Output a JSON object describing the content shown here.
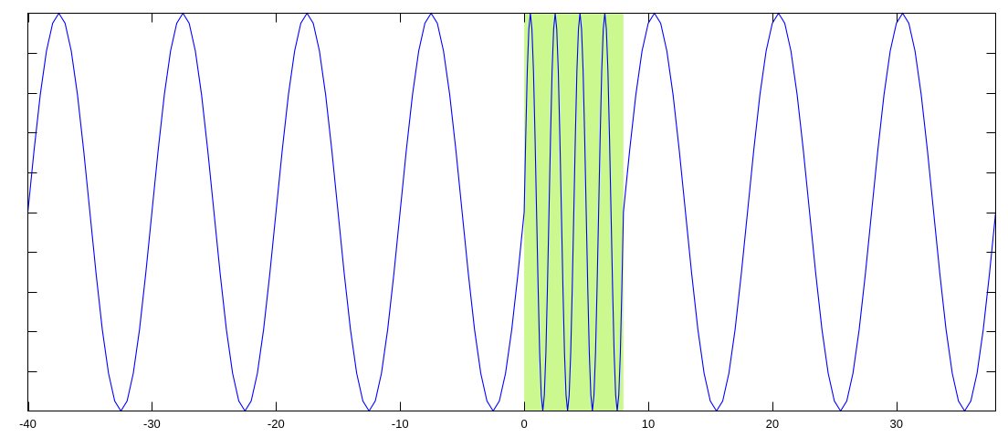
{
  "chart_data": {
    "type": "line",
    "title": "",
    "xlabel": "",
    "ylabel": "",
    "xlim": [
      -40,
      38
    ],
    "ylim": [
      -1,
      1
    ],
    "grid": false,
    "x_ticks": [
      -40,
      -30,
      -20,
      -10,
      0,
      10,
      20,
      30
    ],
    "x_tick_labels": [
      "-40",
      "-30",
      "-20",
      "-10",
      "0",
      "10",
      "20",
      "30"
    ],
    "y_tick_count": 11,
    "y_tick_labels_shown": false,
    "highlight_band": {
      "x_from": 0,
      "x_to": 8,
      "color": "#ccf98f"
    },
    "series_color": "#0000ff",
    "segments": [
      {
        "x_start": -40,
        "x_step": 0.5,
        "y": [
          0,
          0.31,
          0.59,
          0.81,
          0.95,
          1,
          0.95,
          0.81,
          0.59,
          0.31,
          0,
          -0.31,
          -0.59,
          -0.81,
          -0.95,
          -1,
          -0.95,
          -0.81,
          -0.59,
          -0.31,
          0,
          0.31,
          0.59,
          0.81,
          0.95,
          1,
          0.95,
          0.81,
          0.59,
          0.31,
          0,
          -0.31,
          -0.59,
          -0.81,
          -0.95,
          -1,
          -0.95,
          -0.81,
          -0.59,
          -0.31,
          0,
          0.31,
          0.59,
          0.81,
          0.95,
          1,
          0.95,
          0.81,
          0.59,
          0.31,
          0,
          -0.31,
          -0.59,
          -0.81,
          -0.95,
          -1,
          -0.95,
          -0.81,
          -0.59,
          -0.31,
          0,
          0.31,
          0.59,
          0.81,
          0.95,
          1,
          0.95,
          0.81,
          0.59,
          0.31,
          0,
          -0.31,
          -0.59,
          -0.81,
          -0.95,
          -1,
          -0.95,
          -0.81,
          -0.59,
          -0.31,
          0
        ]
      },
      {
        "x_start": 0,
        "x_step": 0.125,
        "y": [
          0,
          0.38,
          0.71,
          0.92,
          1,
          0.92,
          0.71,
          0.38,
          0,
          -0.38,
          -0.71,
          -0.92,
          -1,
          -0.92,
          -0.71,
          -0.38,
          0,
          0.38,
          0.71,
          0.92,
          1,
          0.92,
          0.71,
          0.38,
          0,
          -0.38,
          -0.71,
          -0.92,
          -1,
          -0.92,
          -0.71,
          -0.38,
          0,
          0.38,
          0.71,
          0.92,
          1,
          0.92,
          0.71,
          0.38,
          0,
          -0.38,
          -0.71,
          -0.92,
          -1,
          -0.92,
          -0.71,
          -0.38,
          0,
          0.38,
          0.71,
          0.92,
          1,
          0.92,
          0.71,
          0.38,
          0,
          -0.38,
          -0.71,
          -0.92,
          -1,
          -0.92,
          -0.71,
          -0.38,
          0
        ]
      },
      {
        "x_start": 8,
        "x_step": 0.5,
        "y": [
          0,
          0.31,
          0.59,
          0.81,
          0.95,
          1,
          0.95,
          0.81,
          0.59,
          0.31,
          0,
          -0.31,
          -0.59,
          -0.81,
          -0.95,
          -1,
          -0.95,
          -0.81,
          -0.59,
          -0.31,
          0,
          0.31,
          0.59,
          0.81,
          0.95,
          1,
          0.95,
          0.81,
          0.59,
          0.31,
          0,
          -0.31,
          -0.59,
          -0.81,
          -0.95,
          -1,
          -0.95,
          -0.81,
          -0.59,
          -0.31,
          0,
          0.31,
          0.59,
          0.81,
          0.95,
          1,
          0.95,
          0.81,
          0.59,
          0.31,
          0,
          -0.31,
          -0.59,
          -0.81,
          -0.95,
          -1,
          -0.95,
          -0.81,
          -0.59,
          -0.31,
          0
        ]
      }
    ]
  }
}
